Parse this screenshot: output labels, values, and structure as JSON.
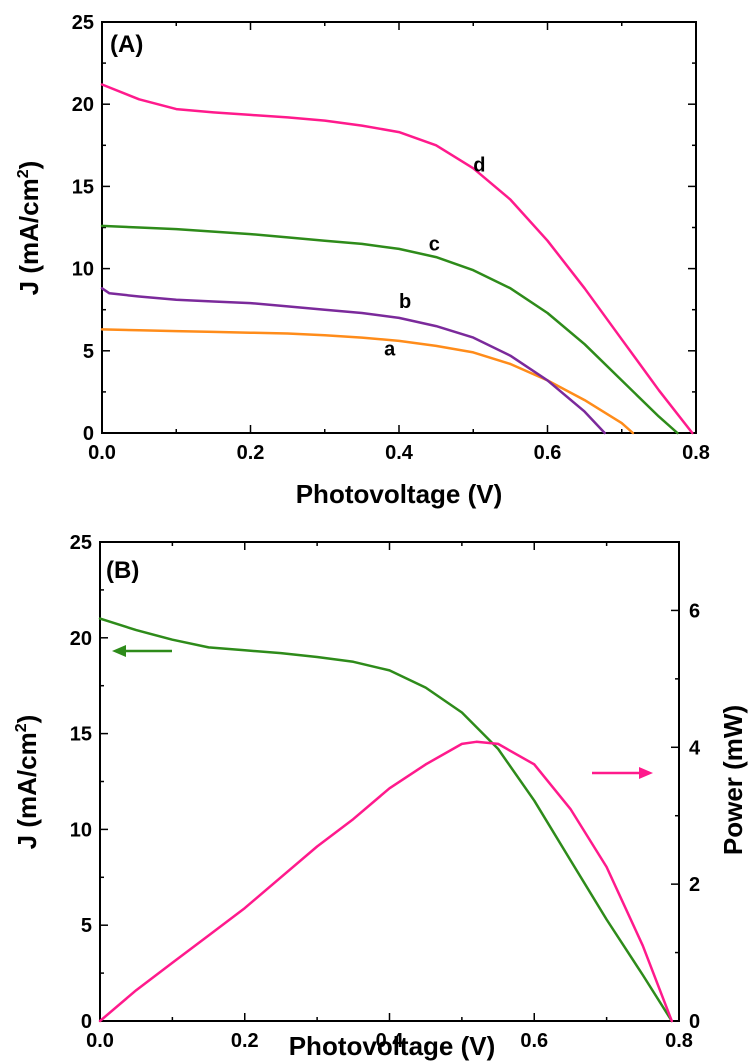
{
  "chart_data": [
    {
      "panel_label": "(A)",
      "type": "line",
      "xlabel": "Photovoltage (V)",
      "ylabel": "J (mA/cm",
      "ylabel_sup": "2",
      "ylabel_close": ")",
      "xlim": [
        0,
        0.8
      ],
      "ylim": [
        0,
        25
      ],
      "xticks": [
        0.0,
        0.2,
        0.4,
        0.6,
        0.8
      ],
      "xtick_labels": [
        "0.0",
        "0.2",
        "0.4",
        "0.6",
        "0.8"
      ],
      "yticks": [
        0,
        5,
        10,
        15,
        20,
        25
      ],
      "ytick_labels": [
        "0",
        "5",
        "10",
        "15",
        "20",
        "25"
      ],
      "grid": false,
      "legend": "none (curves labeled directly)",
      "series": [
        {
          "name": "a",
          "color": "#ff8c1a",
          "x": [
            0.0,
            0.05,
            0.1,
            0.15,
            0.2,
            0.25,
            0.3,
            0.35,
            0.4,
            0.45,
            0.5,
            0.55,
            0.6,
            0.65,
            0.7,
            0.715
          ],
          "y": [
            6.3,
            6.25,
            6.2,
            6.15,
            6.1,
            6.05,
            5.95,
            5.8,
            5.6,
            5.3,
            4.9,
            4.2,
            3.2,
            2.0,
            0.6,
            0.0
          ]
        },
        {
          "name": "b",
          "color": "#7b2a9b",
          "x": [
            0.0,
            0.01,
            0.05,
            0.1,
            0.15,
            0.2,
            0.25,
            0.3,
            0.35,
            0.4,
            0.45,
            0.5,
            0.55,
            0.6,
            0.65,
            0.677
          ],
          "y": [
            8.8,
            8.5,
            8.3,
            8.1,
            8.0,
            7.9,
            7.7,
            7.5,
            7.3,
            7.0,
            6.5,
            5.8,
            4.7,
            3.2,
            1.3,
            0.0
          ]
        },
        {
          "name": "c",
          "color": "#2e8b1a",
          "x": [
            0.0,
            0.05,
            0.1,
            0.15,
            0.2,
            0.25,
            0.3,
            0.35,
            0.4,
            0.45,
            0.5,
            0.55,
            0.6,
            0.65,
            0.7,
            0.75,
            0.775
          ],
          "y": [
            12.6,
            12.5,
            12.4,
            12.25,
            12.1,
            11.9,
            11.7,
            11.5,
            11.2,
            10.7,
            9.9,
            8.8,
            7.3,
            5.4,
            3.2,
            1.0,
            0.0
          ]
        },
        {
          "name": "d",
          "color": "#ff1a8c",
          "x": [
            0.0,
            0.05,
            0.1,
            0.15,
            0.2,
            0.25,
            0.3,
            0.35,
            0.4,
            0.45,
            0.5,
            0.55,
            0.6,
            0.65,
            0.7,
            0.75,
            0.795
          ],
          "y": [
            21.2,
            20.3,
            19.7,
            19.5,
            19.35,
            19.2,
            19.0,
            18.7,
            18.3,
            17.5,
            16.1,
            14.2,
            11.7,
            8.8,
            5.7,
            2.6,
            0.0
          ]
        }
      ]
    },
    {
      "panel_label": "(B)",
      "type": "line",
      "xlabel": "Photovoltage (V)",
      "ylabel": "J (mA/cm",
      "ylabel_sup": "2",
      "ylabel_close": ")",
      "y2label": "Power (mW)",
      "xlim": [
        0,
        0.8
      ],
      "ylim": [
        0,
        25
      ],
      "y2lim": [
        0,
        7
      ],
      "xticks": [
        0.0,
        0.2,
        0.4,
        0.6,
        0.8
      ],
      "xtick_labels": [
        "0.0",
        "0.2",
        "0.4",
        "0.6",
        "0.8"
      ],
      "yticks": [
        0,
        5,
        10,
        15,
        20,
        25
      ],
      "ytick_labels": [
        "0",
        "5",
        "10",
        "15",
        "20",
        "25"
      ],
      "y2ticks": [
        0,
        2,
        4,
        6
      ],
      "y2tick_labels": [
        "0",
        "2",
        "4",
        "6"
      ],
      "grid": false,
      "legend": "none (arrows indicate axis)",
      "series": [
        {
          "axis": "left",
          "color": "#2e8b1a",
          "x": [
            0.0,
            0.05,
            0.1,
            0.15,
            0.2,
            0.25,
            0.3,
            0.35,
            0.4,
            0.45,
            0.5,
            0.55,
            0.6,
            0.65,
            0.7,
            0.75,
            0.79
          ],
          "y": [
            21.0,
            20.4,
            19.9,
            19.5,
            19.35,
            19.2,
            19.0,
            18.75,
            18.3,
            17.4,
            16.1,
            14.2,
            11.5,
            8.4,
            5.3,
            2.4,
            0.0
          ]
        },
        {
          "axis": "right",
          "color": "#ff1a8c",
          "x": [
            0.0,
            0.05,
            0.1,
            0.15,
            0.2,
            0.25,
            0.3,
            0.35,
            0.4,
            0.45,
            0.5,
            0.52,
            0.55,
            0.6,
            0.65,
            0.7,
            0.75,
            0.79
          ],
          "y": [
            0.0,
            0.45,
            0.85,
            1.25,
            1.65,
            2.1,
            2.55,
            2.95,
            3.4,
            3.75,
            4.05,
            4.08,
            4.05,
            3.75,
            3.1,
            2.25,
            1.1,
            0.0
          ]
        }
      ],
      "arrows": [
        {
          "points_to": "left-axis",
          "color": "#2e8b1a"
        },
        {
          "points_to": "right-axis",
          "color": "#ff1a8c"
        }
      ]
    }
  ]
}
